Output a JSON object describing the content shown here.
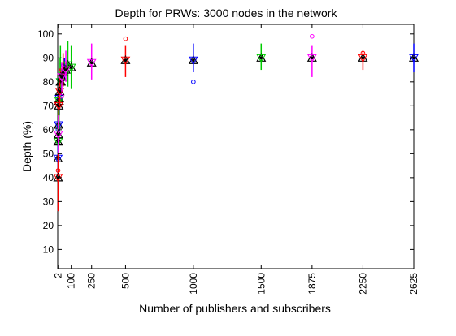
{
  "chart_data": {
    "type": "scatter",
    "title": "Depth for PRWs: 3000 nodes in the network",
    "xlabel": "Number of publishers and subscribers",
    "ylabel": "Depth (%)",
    "xlim": [
      0,
      2625
    ],
    "ylim": [
      2,
      104
    ],
    "xticks": [
      2,
      100,
      250,
      500,
      1000,
      1500,
      1875,
      2250,
      2625
    ],
    "yticks": [
      10,
      20,
      30,
      40,
      50,
      60,
      70,
      80,
      90,
      100
    ],
    "grid": false,
    "legend": "none",
    "mean_marker": "triangle",
    "series_colors": [
      "#0000ff",
      "#00cc00",
      "#ff0000",
      "#ff00ff"
    ],
    "series": [
      {
        "color": "#0000ff",
        "points": [
          {
            "x": 2,
            "mean": 48,
            "low": 40,
            "high": 58,
            "outliers": [
              60
            ]
          },
          {
            "x": 6,
            "mean": 62,
            "low": 55,
            "high": 70,
            "outliers": []
          },
          {
            "x": 12,
            "mean": 73,
            "low": 66,
            "high": 78,
            "outliers": []
          },
          {
            "x": 25,
            "mean": 80,
            "low": 74,
            "high": 85,
            "outliers": []
          },
          {
            "x": 50,
            "mean": 86,
            "low": 81,
            "high": 90,
            "outliers": []
          },
          {
            "x": 1000,
            "mean": 89,
            "low": 84,
            "high": 96,
            "outliers": [
              80
            ]
          },
          {
            "x": 2625,
            "mean": 90,
            "low": 84,
            "high": 96,
            "outliers": []
          }
        ]
      },
      {
        "color": "#00cc00",
        "points": [
          {
            "x": 4,
            "mean": 55,
            "low": 30,
            "high": 68,
            "outliers": []
          },
          {
            "x": 10,
            "mean": 72,
            "low": 60,
            "high": 90,
            "outliers": []
          },
          {
            "x": 20,
            "mean": 80,
            "low": 72,
            "high": 95,
            "outliers": []
          },
          {
            "x": 75,
            "mean": 87,
            "low": 78,
            "high": 97,
            "outliers": []
          },
          {
            "x": 100,
            "mean": 86,
            "low": 77,
            "high": 95,
            "outliers": []
          },
          {
            "x": 1500,
            "mean": 90,
            "low": 85,
            "high": 96,
            "outliers": []
          }
        ]
      },
      {
        "color": "#ff0000",
        "points": [
          {
            "x": 3,
            "mean": 40,
            "low": 26,
            "high": 50,
            "outliers": [
              43
            ]
          },
          {
            "x": 8,
            "mean": 70,
            "low": 62,
            "high": 78,
            "outliers": []
          },
          {
            "x": 15,
            "mean": 76,
            "low": 70,
            "high": 82,
            "outliers": []
          },
          {
            "x": 40,
            "mean": 84,
            "low": 78,
            "high": 92,
            "outliers": []
          },
          {
            "x": 500,
            "mean": 89,
            "low": 82,
            "high": 95,
            "outliers": [
              98
            ]
          },
          {
            "x": 2250,
            "mean": 90,
            "low": 85,
            "high": 93,
            "outliers": [
              92
            ]
          }
        ]
      },
      {
        "color": "#ff00ff",
        "points": [
          {
            "x": 5,
            "mean": 58,
            "low": 50,
            "high": 66,
            "outliers": []
          },
          {
            "x": 30,
            "mean": 82,
            "low": 76,
            "high": 88,
            "outliers": [
              74
            ]
          },
          {
            "x": 60,
            "mean": 85,
            "low": 80,
            "high": 93,
            "outliers": []
          },
          {
            "x": 250,
            "mean": 88,
            "low": 81,
            "high": 96,
            "outliers": []
          },
          {
            "x": 1875,
            "mean": 90,
            "low": 82,
            "high": 95,
            "outliers": [
              99
            ]
          }
        ]
      }
    ]
  }
}
